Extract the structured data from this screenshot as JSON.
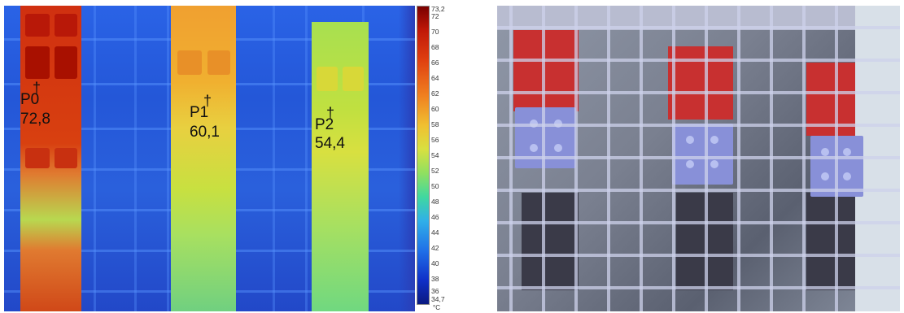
{
  "thermal_image": {
    "probes": [
      {
        "name": "P0",
        "value": "72,8"
      },
      {
        "name": "P1",
        "value": "60,1"
      },
      {
        "name": "P2",
        "value": "54,4"
      }
    ],
    "cross_symbol": "†"
  },
  "scale": {
    "max_label": "73,2",
    "min_label": "34,7",
    "unit": "°C",
    "ticks": [
      "72",
      "70",
      "68",
      "66",
      "64",
      "62",
      "60",
      "58",
      "56",
      "54",
      "52",
      "50",
      "48",
      "46",
      "44",
      "42",
      "40",
      "38",
      "36"
    ]
  },
  "colors": {
    "hot": "#c81a0a",
    "warm": "#f0a030",
    "mid": "#c8e040",
    "cool": "#2a60dc",
    "plate_blue": "#8890d8",
    "red_part": "#c83030"
  }
}
